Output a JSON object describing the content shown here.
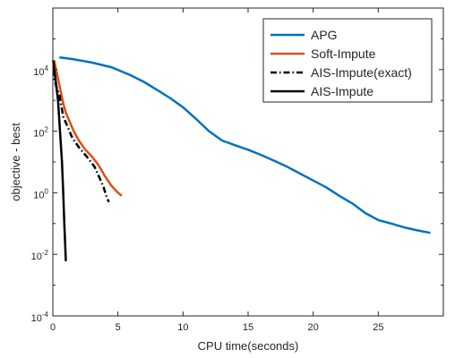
{
  "chart_data": {
    "type": "line",
    "title": "",
    "xlabel": "CPU time(seconds)",
    "ylabel": "objective - best",
    "xlim": [
      0,
      30
    ],
    "ylim": [
      0.0001,
      1000000
    ],
    "yscale": "log",
    "grid": false,
    "legend_position": "top-right",
    "x_ticks": [
      {
        "value": 0,
        "label": "0"
      },
      {
        "value": 5,
        "label": "5"
      },
      {
        "value": 10,
        "label": "10"
      },
      {
        "value": 15,
        "label": "15"
      },
      {
        "value": 20,
        "label": "20"
      },
      {
        "value": 25,
        "label": "25"
      }
    ],
    "y_ticks": [
      {
        "exp": -4,
        "base": "10",
        "sup": "-4"
      },
      {
        "exp": -2,
        "base": "10",
        "sup": "-2"
      },
      {
        "exp": 0,
        "base": "10",
        "sup": "0"
      },
      {
        "exp": 2,
        "base": "10",
        "sup": "2"
      },
      {
        "exp": 4,
        "base": "10",
        "sup": "4"
      }
    ],
    "series": [
      {
        "name": "APG",
        "color": "#0072BD",
        "dash": "solid",
        "points": [
          [
            0.5,
            25000
          ],
          [
            1.5,
            22000
          ],
          [
            3,
            17000
          ],
          [
            4.5,
            12000
          ],
          [
            6,
            6500
          ],
          [
            7,
            4000
          ],
          [
            8,
            2200
          ],
          [
            9,
            1200
          ],
          [
            10,
            600
          ],
          [
            11,
            250
          ],
          [
            12,
            100
          ],
          [
            13,
            50
          ],
          [
            14,
            35
          ],
          [
            15,
            25
          ],
          [
            16,
            17
          ],
          [
            17,
            11
          ],
          [
            18,
            7
          ],
          [
            19,
            4.2
          ],
          [
            20,
            2.5
          ],
          [
            21,
            1.5
          ],
          [
            22,
            0.8
          ],
          [
            23,
            0.45
          ],
          [
            24,
            0.22
          ],
          [
            25,
            0.13
          ],
          [
            26,
            0.1
          ],
          [
            27,
            0.075
          ],
          [
            28,
            0.06
          ],
          [
            29,
            0.05
          ]
        ]
      },
      {
        "name": "Soft-Impute",
        "color": "#D95319",
        "dash": "solid",
        "points": [
          [
            0.1,
            20000
          ],
          [
            0.3,
            8000
          ],
          [
            0.6,
            2000
          ],
          [
            0.8,
            800
          ],
          [
            1.0,
            400
          ],
          [
            1.3,
            200
          ],
          [
            1.6,
            100
          ],
          [
            2.0,
            50
          ],
          [
            2.5,
            25
          ],
          [
            3.0,
            15
          ],
          [
            3.5,
            8
          ],
          [
            4.0,
            3.5
          ],
          [
            4.5,
            1.7
          ],
          [
            5.0,
            1.0
          ],
          [
            5.3,
            0.8
          ]
        ]
      },
      {
        "name": "AIS-Impute(exact)",
        "color": "#000000",
        "dash": "dashdot",
        "points": [
          [
            0.05,
            10000
          ],
          [
            0.1,
            5000
          ],
          [
            0.3,
            2500
          ],
          [
            0.5,
            1500
          ],
          [
            0.8,
            300
          ],
          [
            1.1,
            150
          ],
          [
            1.5,
            60
          ],
          [
            2.0,
            30
          ],
          [
            2.6,
            15
          ],
          [
            3.2,
            7
          ],
          [
            3.6,
            3
          ],
          [
            3.9,
            1.5
          ],
          [
            4.1,
            0.8
          ],
          [
            4.3,
            0.5
          ]
        ]
      },
      {
        "name": "AIS-Impute",
        "color": "#000000",
        "dash": "solid",
        "points": [
          [
            0.02,
            20000
          ],
          [
            0.2,
            5000
          ],
          [
            0.4,
            1000
          ],
          [
            0.55,
            100
          ],
          [
            0.7,
            10
          ],
          [
            0.8,
            1
          ],
          [
            0.88,
            0.1
          ],
          [
            0.95,
            0.02
          ],
          [
            1.0,
            0.006
          ]
        ]
      }
    ]
  }
}
